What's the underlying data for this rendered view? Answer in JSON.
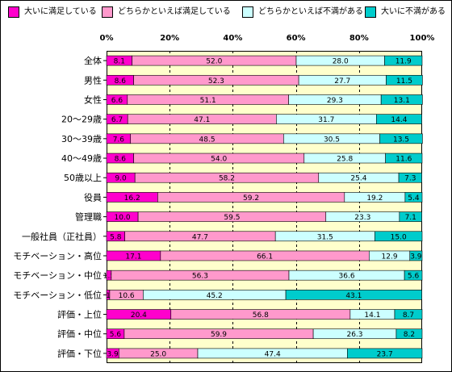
{
  "legend": [
    {
      "label": "大いに満足している",
      "color": "#ff00cc"
    },
    {
      "label": "どちらかといえば満足している",
      "color": "#ff99cc"
    },
    {
      "label": "どちらかといえば不満がある",
      "color": "#ccffff"
    },
    {
      "label": "大いに不満がある",
      "color": "#00cccc"
    }
  ],
  "chart_data": {
    "type": "bar",
    "orientation": "horizontal",
    "stacked": "percent",
    "xlim": [
      0,
      100
    ],
    "x_ticks": [
      "0%",
      "20%",
      "40%",
      "60%",
      "80%",
      "100%"
    ],
    "plot_background": "#ffffcc",
    "grid": "dashed vertical lines at 20% intervals",
    "categories": [
      "全体",
      "男性",
      "女性",
      "20～29歳",
      "30～39歳",
      "40～49歳",
      "50歳以上",
      "役員",
      "管理職",
      "一般社員（正社員）",
      "モチベーション・高位",
      "モチベーション・中位",
      "モチベーション・低位",
      "評価・上位",
      "評価・中位",
      "評価・下位"
    ],
    "series": [
      {
        "name": "大いに満足している",
        "color": "#ff00cc",
        "values": [
          8.1,
          8.6,
          6.6,
          6.7,
          7.6,
          8.6,
          9.0,
          16.2,
          10.0,
          5.8,
          17.1,
          1.5,
          1.0,
          20.4,
          5.6,
          3.9
        ]
      },
      {
        "name": "どちらかといえば満足している",
        "color": "#ff99cc",
        "values": [
          52.0,
          52.3,
          51.1,
          47.1,
          48.5,
          54.0,
          58.2,
          59.2,
          59.5,
          47.7,
          66.1,
          56.3,
          10.6,
          56.8,
          59.9,
          25.0
        ]
      },
      {
        "name": "どちらかといえば不満がある",
        "color": "#ccffff",
        "values": [
          28.0,
          27.7,
          29.3,
          31.7,
          30.5,
          25.8,
          25.4,
          19.2,
          23.3,
          31.5,
          12.9,
          36.6,
          45.2,
          14.1,
          26.3,
          47.4
        ]
      },
      {
        "name": "大いに不満がある",
        "color": "#00cccc",
        "values": [
          11.9,
          11.5,
          13.1,
          14.4,
          13.5,
          11.6,
          7.3,
          5.4,
          7.1,
          15.0,
          3.9,
          5.6,
          43.1,
          8.7,
          8.2,
          23.7
        ]
      }
    ],
    "data_labels": [
      [
        "8.1",
        "52.0",
        "28.0",
        "11.9"
      ],
      [
        "8.6",
        "52.3",
        "27.7",
        "11.5"
      ],
      [
        "6.6",
        "51.1",
        "29.3",
        "13.1"
      ],
      [
        "6.7",
        "47.1",
        "31.7",
        "14.4"
      ],
      [
        "7.6",
        "48.5",
        "30.5",
        "13.5"
      ],
      [
        "8.6",
        "54.0",
        "25.8",
        "11.6"
      ],
      [
        "9.0",
        "58.2",
        "25.4",
        "7.3"
      ],
      [
        "16.2",
        "59.2",
        "19.2",
        "5.4"
      ],
      [
        "10.0",
        "59.5",
        "23.3",
        "7.1"
      ],
      [
        "5.8",
        "47.7",
        "31.5",
        "15.0"
      ],
      [
        "17.1",
        "66.1",
        "12.9",
        "3.9"
      ],
      [
        "1.5",
        "56.3",
        "36.6",
        "5.6"
      ],
      [
        "1",
        "10.6",
        "45.2",
        "43.1"
      ],
      [
        "20.4",
        "56.8",
        "14.1",
        "8.7"
      ],
      [
        "5.6",
        "59.9",
        "26.3",
        "8.2"
      ],
      [
        "3.9",
        "25.0",
        "47.4",
        "23.7"
      ]
    ]
  }
}
